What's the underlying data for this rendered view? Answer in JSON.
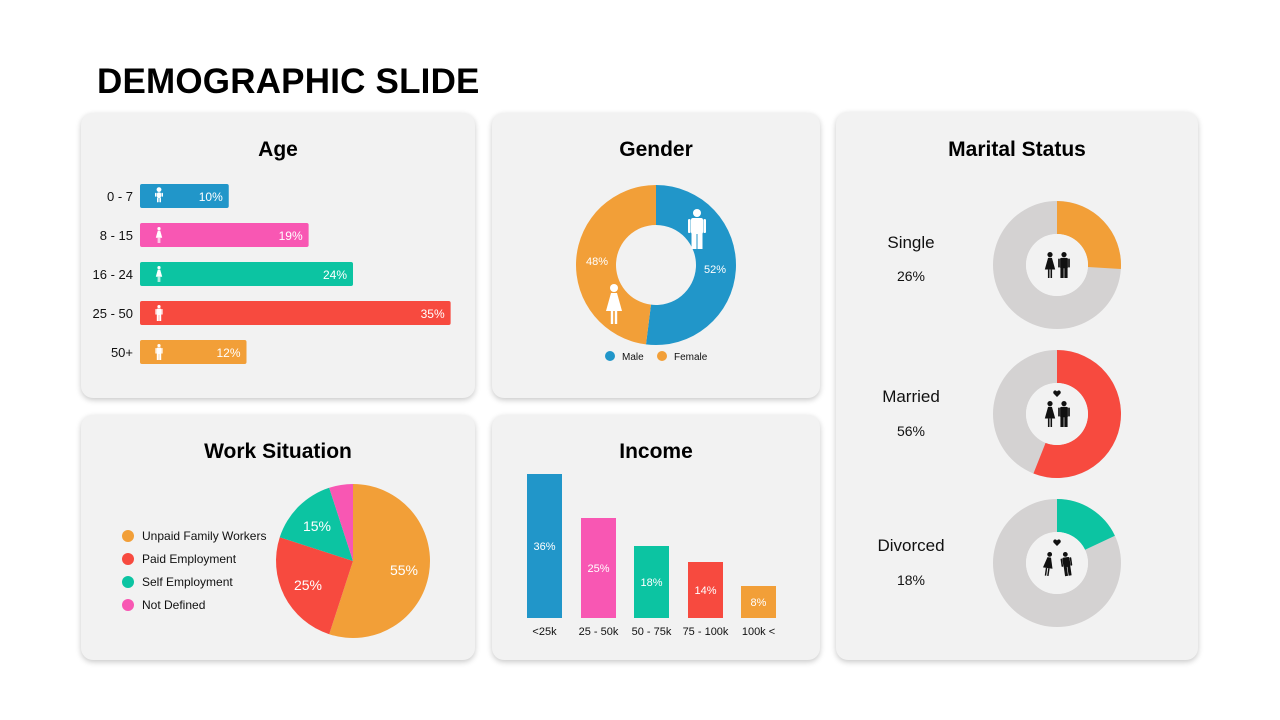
{
  "page": {
    "title": "DEMOGRAPHIC SLIDE"
  },
  "colors": {
    "blue": "#2196c9",
    "pink": "#f857b3",
    "teal": "#0cc4a2",
    "red": "#f74a3f",
    "orange": "#f29f38",
    "grey": "#d4d2d2"
  },
  "chart_data": [
    {
      "id": "age",
      "type": "bar",
      "orientation": "horizontal",
      "title": "Age",
      "categories": [
        "0 - 7",
        "8 - 15",
        "16 - 24",
        "25 - 50",
        "50+"
      ],
      "values": [
        10,
        19,
        24,
        35,
        12
      ],
      "labels": [
        "10%",
        "19%",
        "24%",
        "35%",
        "12%"
      ],
      "colors": [
        "#2196c9",
        "#f857b3",
        "#0cc4a2",
        "#f74a3f",
        "#f29f38"
      ],
      "icons": [
        "baby-icon",
        "girl-icon",
        "young-woman-icon",
        "man-icon",
        "elderly-man-icon"
      ]
    },
    {
      "id": "gender",
      "type": "pie",
      "style": "donut",
      "title": "Gender",
      "series": [
        {
          "name": "Male",
          "value": 52,
          "label": "52%",
          "color": "#2196c9",
          "icon": "male-icon"
        },
        {
          "name": "Female",
          "value": 48,
          "label": "48%",
          "color": "#f29f38",
          "icon": "female-icon"
        }
      ],
      "legend": "bottom"
    },
    {
      "id": "marital",
      "type": "pie",
      "style": "donut",
      "title": "Marital Status",
      "items": [
        {
          "label": "Single",
          "value": 26,
          "value_label": "26%",
          "color": "#f29f38",
          "icon": "single-people-icon"
        },
        {
          "label": "Married",
          "value": 56,
          "value_label": "56%",
          "color": "#f74a3f",
          "icon": "married-couple-icon"
        },
        {
          "label": "Divorced",
          "value": 18,
          "value_label": "18%",
          "color": "#0cc4a2",
          "icon": "divorced-couple-icon"
        }
      ]
    },
    {
      "id": "work",
      "type": "pie",
      "title": "Work Situation",
      "series": [
        {
          "name": "Unpaid Family Workers",
          "value": 55,
          "label": "55%",
          "color": "#f29f38"
        },
        {
          "name": "Paid Employment",
          "value": 25,
          "label": "25%",
          "color": "#f74a3f"
        },
        {
          "name": "Self Employment",
          "value": 15,
          "label": "15%",
          "color": "#0cc4a2"
        },
        {
          "name": "Not Defined",
          "value": 5,
          "label": "",
          "color": "#f857b3"
        }
      ],
      "legend": "left"
    },
    {
      "id": "income",
      "type": "bar",
      "title": "Income",
      "categories": [
        "<25k",
        "25 - 50k",
        "50 - 75k",
        "75 - 100k",
        "100k <"
      ],
      "values": [
        36,
        25,
        18,
        14,
        8
      ],
      "labels": [
        "36%",
        "25%",
        "18%",
        "14%",
        "8%"
      ],
      "colors": [
        "#2196c9",
        "#f857b3",
        "#0cc4a2",
        "#f74a3f",
        "#f29f38"
      ]
    }
  ]
}
